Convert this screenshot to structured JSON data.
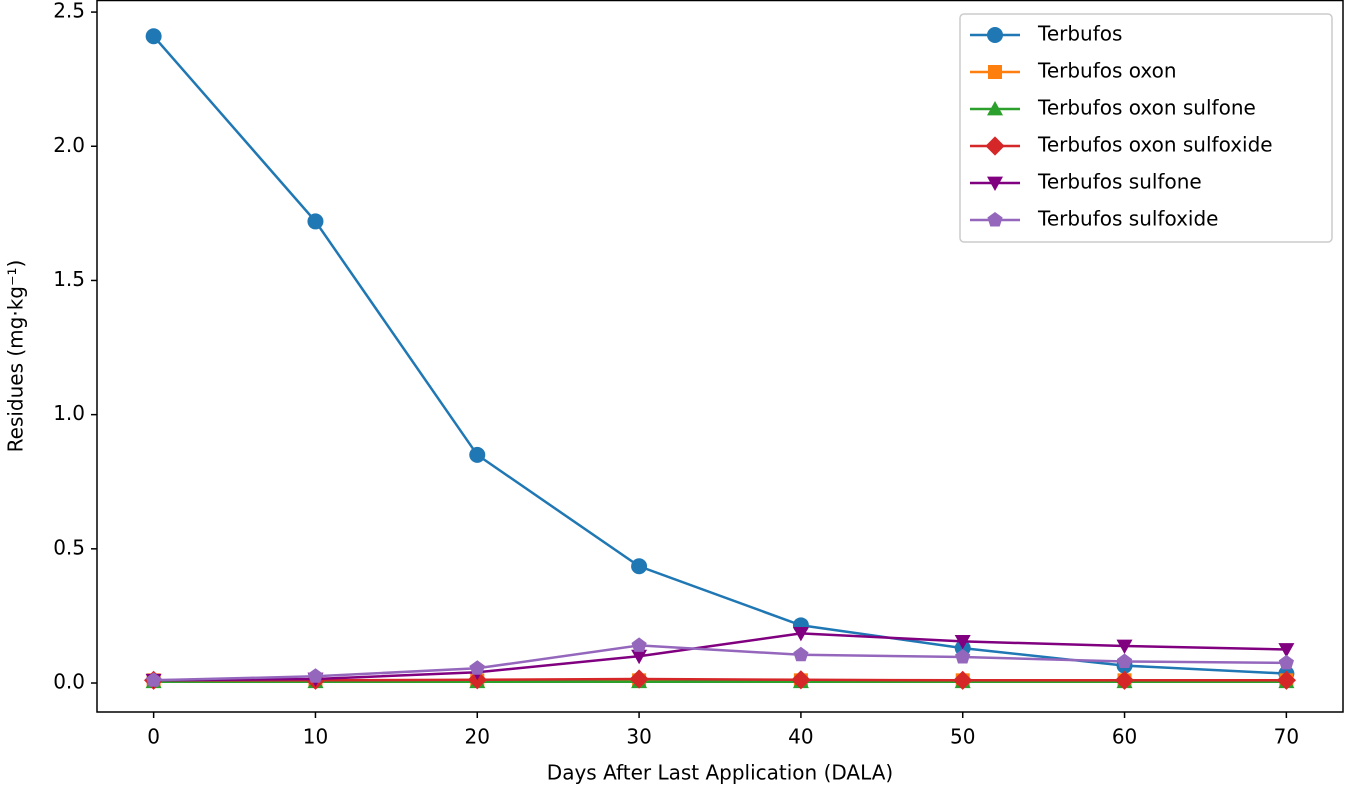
{
  "chart_data": {
    "type": "line",
    "xlabel": "Days After Last Application (DALA)",
    "ylabel": "Residues (mg·kg⁻¹)",
    "x": [
      0,
      10,
      20,
      30,
      40,
      50,
      60,
      70
    ],
    "xlim": [
      -3.5,
      73.5
    ],
    "xticks": [
      0,
      10,
      20,
      30,
      40,
      50,
      60,
      70
    ],
    "ylim": [
      -0.108,
      2.545
    ],
    "yticks": [
      {
        "value": 0,
        "label": "0.0"
      },
      {
        "value": 0.5,
        "label": "0.5"
      },
      {
        "value": 1,
        "label": "1.0"
      },
      {
        "value": 1.5,
        "label": "1.5"
      },
      {
        "value": 2,
        "label": "2.0"
      },
      {
        "value": 2.5,
        "label": "2.5"
      }
    ],
    "legend": "upper right",
    "grid": false,
    "series": [
      {
        "name": "Terbufos",
        "color": "#1f77b4",
        "marker": "circle",
        "values": [
          2.41,
          1.72,
          0.85,
          0.435,
          0.215,
          0.13,
          0.065,
          0.035
        ]
      },
      {
        "name": "Terbufos oxon",
        "color": "#ff7f0e",
        "marker": "square",
        "values": [
          0.01,
          0.01,
          0.01,
          0.01,
          0.01,
          0.01,
          0.01,
          0.01
        ]
      },
      {
        "name": "Terbufos oxon sulfone",
        "color": "#2ca02c",
        "marker": "triangle-up",
        "values": [
          0.005,
          0.005,
          0.005,
          0.005,
          0.005,
          0.005,
          0.005,
          0.005
        ]
      },
      {
        "name": "Terbufos oxon sulfoxide",
        "color": "#d62728",
        "marker": "diamond",
        "values": [
          0.01,
          0.01,
          0.012,
          0.015,
          0.012,
          0.01,
          0.01,
          0.01
        ]
      },
      {
        "name": "Terbufos sulfone",
        "color": "#800080",
        "marker": "triangle-down",
        "values": [
          0.01,
          0.015,
          0.04,
          0.1,
          0.185,
          0.155,
          0.138,
          0.125
        ]
      },
      {
        "name": "Terbufos sulfoxide",
        "color": "#9467bd",
        "marker": "pentagon",
        "values": [
          0.01,
          0.025,
          0.055,
          0.14,
          0.105,
          0.097,
          0.08,
          0.075
        ]
      }
    ]
  }
}
